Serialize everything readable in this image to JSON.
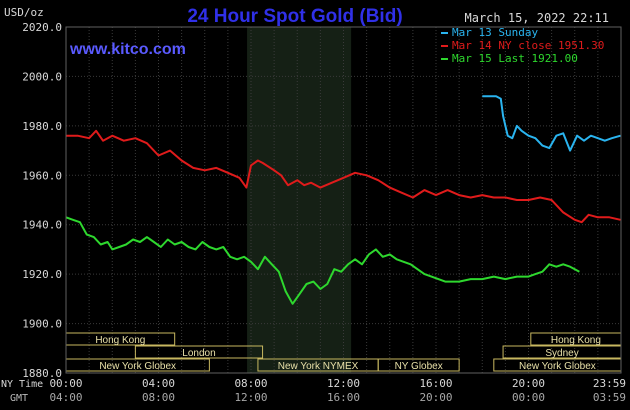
{
  "chart_data": {
    "type": "line",
    "title": "24 Hour Spot Gold (Bid)",
    "website": "www.kitco.com",
    "timestamp": "March 15, 2022 22:11",
    "yunit": "USD/oz",
    "ylim": [
      1880,
      2020
    ],
    "yticks": [
      "2020.0",
      "2000.0",
      "1980.0",
      "1960.0",
      "1940.0",
      "1920.0",
      "1900.0",
      "1880.0"
    ],
    "yticks_values": [
      2020,
      2000,
      1980,
      1960,
      1940,
      1920,
      1900,
      1880
    ],
    "xlim": [
      0,
      24
    ],
    "xticks_ny": [
      "00:00",
      "04:00",
      "08:00",
      "12:00",
      "16:00",
      "20:00",
      "23:59"
    ],
    "xticks_gmt": [
      "04:00",
      "08:00",
      "12:00",
      "16:00",
      "20:00",
      "00:00",
      "03:59"
    ],
    "xticks_values": [
      0,
      4,
      8,
      12,
      16,
      20,
      23.98
    ],
    "row_label_ny": "NY Time",
    "row_label_gmt": "GMT",
    "highlight_range": [
      7.83,
      12.33
    ],
    "grid": true,
    "legend_position": "top-right",
    "sessions": [
      {
        "label": "Hong Kong",
        "start": 0,
        "end": 4.7,
        "row": 0
      },
      {
        "label": "Hong Kong",
        "start": 20.1,
        "end": 24,
        "row": 0
      },
      {
        "label": "London",
        "start": 3,
        "end": 8.5,
        "row": 1
      },
      {
        "label": "Sydney",
        "start": 18.9,
        "end": 24,
        "row": 1
      },
      {
        "label": "New York Globex",
        "start": 0,
        "end": 6.2,
        "row": 2
      },
      {
        "label": "New York NYMEX",
        "start": 8.3,
        "end": 13.5,
        "row": 2
      },
      {
        "label": "NY Globex",
        "start": 13.5,
        "end": 17,
        "row": 2
      },
      {
        "label": "New York Globex",
        "start": 18.5,
        "end": 24,
        "row": 2
      }
    ],
    "series": [
      {
        "name": "Mar 13 Sunday",
        "color": "#2ab4ef",
        "x": [
          18,
          18.6,
          18.8,
          18.9,
          19.1,
          19.3,
          19.5,
          19.7,
          20,
          20.3,
          20.6,
          20.9,
          21.2,
          21.5,
          21.8,
          22.1,
          22.4,
          22.7,
          23,
          23.3,
          23.6,
          23.98
        ],
        "values": [
          1992,
          1992,
          1991,
          1984,
          1976,
          1975,
          1980,
          1978,
          1976,
          1975,
          1972,
          1971,
          1976,
          1977,
          1970,
          1976,
          1974,
          1976,
          1975,
          1974,
          1975,
          1976
        ]
      },
      {
        "name": "Mar 14 NY close 1951.30",
        "color": "#e01b1b",
        "x": [
          0,
          0.5,
          1,
          1.3,
          1.6,
          2,
          2.5,
          3,
          3.5,
          4,
          4.5,
          5,
          5.5,
          6,
          6.5,
          7,
          7.5,
          7.8,
          8,
          8.3,
          8.5,
          9,
          9.3,
          9.6,
          10,
          10.3,
          10.6,
          11,
          11.5,
          12,
          12.5,
          13,
          13.5,
          14,
          14.5,
          15,
          15.5,
          16,
          16.5,
          17,
          17.5,
          18,
          18.5,
          19,
          19.5,
          20,
          20.5,
          21,
          21.5,
          22,
          22.3,
          22.6,
          23,
          23.5,
          23.98
        ],
        "values": [
          1976,
          1976,
          1975,
          1978,
          1974,
          1976,
          1974,
          1975,
          1973,
          1968,
          1970,
          1966,
          1963,
          1962,
          1963,
          1961,
          1959,
          1955,
          1964,
          1966,
          1965,
          1962,
          1960,
          1956,
          1958,
          1956,
          1957,
          1955,
          1957,
          1959,
          1961,
          1960,
          1958,
          1955,
          1953,
          1951,
          1954,
          1952,
          1954,
          1952,
          1951,
          1952,
          1951,
          1951,
          1950,
          1950,
          1951,
          1950,
          1945,
          1942,
          1941,
          1944,
          1943,
          1943,
          1942
        ]
      },
      {
        "name": "Mar 15 Last 1921.00",
        "color": "#2ed82e",
        "x": [
          0,
          0.3,
          0.6,
          0.9,
          1.2,
          1.5,
          1.8,
          2,
          2.3,
          2.6,
          2.9,
          3.2,
          3.5,
          3.8,
          4.1,
          4.4,
          4.7,
          5,
          5.3,
          5.6,
          5.9,
          6.2,
          6.5,
          6.8,
          7.1,
          7.4,
          7.7,
          8,
          8.3,
          8.6,
          8.9,
          9.2,
          9.5,
          9.8,
          10.1,
          10.4,
          10.7,
          11,
          11.3,
          11.6,
          11.9,
          12.2,
          12.5,
          12.8,
          13.1,
          13.4,
          13.7,
          14,
          14.3,
          14.6,
          14.9,
          15.2,
          15.5,
          15.8,
          16.1,
          16.4,
          16.7,
          17,
          17.5,
          18,
          18.5,
          19,
          19.5,
          20,
          20.3,
          20.6,
          20.9,
          21.2,
          21.5,
          21.8,
          22,
          22.2
        ],
        "values": [
          1943,
          1942,
          1941,
          1936,
          1935,
          1932,
          1933,
          1930,
          1931,
          1932,
          1934,
          1933,
          1935,
          1933,
          1931,
          1934,
          1932,
          1933,
          1931,
          1930,
          1933,
          1931,
          1930,
          1931,
          1927,
          1926,
          1927,
          1925,
          1922,
          1927,
          1924,
          1921,
          1913,
          1908,
          1912,
          1916,
          1917,
          1914,
          1916,
          1922,
          1921,
          1924,
          1926,
          1924,
          1928,
          1930,
          1927,
          1928,
          1926,
          1925,
          1924,
          1922,
          1920,
          1919,
          1918,
          1917,
          1917,
          1917,
          1918,
          1918,
          1919,
          1918,
          1919,
          1919,
          1920,
          1921,
          1924,
          1923,
          1924,
          1923,
          1922,
          1921
        ]
      }
    ]
  }
}
